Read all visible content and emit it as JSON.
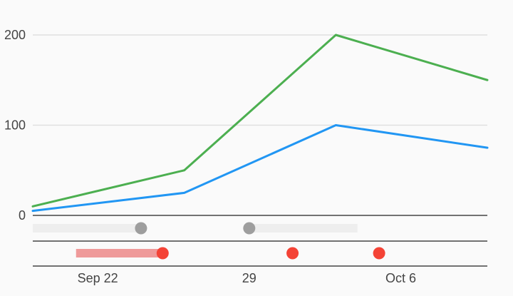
{
  "chart_data": {
    "type": "line",
    "x_dates": [
      "2017-09-19",
      "2017-09-26",
      "2017-10-03",
      "2017-10-10"
    ],
    "series": [
      {
        "values": [
          5,
          25,
          100,
          75
        ],
        "color": "#2196f3"
      },
      {
        "values": [
          10,
          50,
          200,
          150
        ],
        "color": "#4caf50"
      }
    ],
    "ylim": [
      0,
      200
    ],
    "y_ticks": [
      {
        "value": 0,
        "label": "0"
      },
      {
        "value": 100,
        "label": "100"
      },
      {
        "value": 200,
        "label": "200"
      }
    ],
    "xlim": [
      "2017-09-19",
      "2017-10-10"
    ],
    "x_ticks": [
      {
        "date": "2017-09-22",
        "label": "Sep 22"
      },
      {
        "date": "2017-09-29",
        "label": "29"
      },
      {
        "date": "2017-10-06",
        "label": "Oct 6"
      }
    ],
    "grid": true,
    "range_rows": [
      {
        "color": "#9e9e9e",
        "bar_color": "#eeeeee",
        "ranges": [
          [
            "2017-09-19",
            "2017-09-24"
          ],
          [
            "2017-09-29",
            "2017-10-04"
          ]
        ],
        "points": [
          "2017-09-24",
          "2017-09-29"
        ]
      },
      {
        "color": "#f44336",
        "bar_color": "#ef9a9a",
        "ranges": [
          [
            "2017-09-21",
            "2017-09-25"
          ]
        ],
        "points": [
          "2017-09-25",
          "2017-10-01",
          "2017-10-05"
        ]
      }
    ]
  }
}
